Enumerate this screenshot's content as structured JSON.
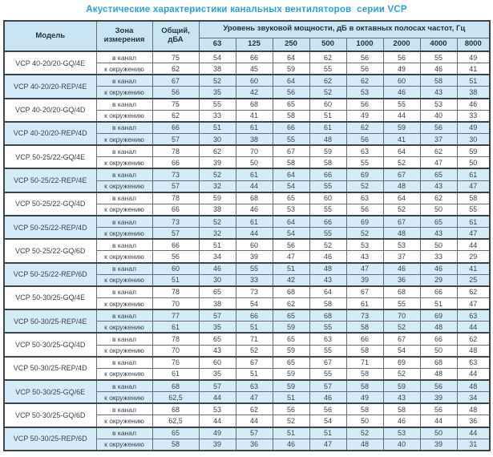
{
  "title": "Акустические характеристики канальных вентиляторов  серии VCP",
  "colors": {
    "title_text": "#2ba1dc",
    "header_bg": "#c9e5f4",
    "shaded_row_bg": "#d6ebf8",
    "header_text": "#25333f",
    "data_text": "#39424e",
    "border_dark": "#3f4448",
    "border_mid": "#666c72",
    "border_light": "#aebfca"
  },
  "table": {
    "headers": {
      "model": "Модель",
      "zone": "Зона измерения",
      "total": "Общий, дБА",
      "octave_group": "Уровень звуковой мощности, дБ в октавных полосах частот, Гц",
      "frequencies": [
        "63",
        "125",
        "250",
        "500",
        "1000",
        "2000",
        "4000",
        "8000"
      ]
    },
    "zone_labels": [
      "в канал",
      "к окружению"
    ],
    "rows": [
      {
        "model": "VCP 40-20/20-GQ/4E",
        "shaded": false,
        "duct": {
          "total": "75",
          "bands": [
            "54",
            "66",
            "64",
            "62",
            "56",
            "56",
            "55",
            "49"
          ]
        },
        "ambient": {
          "total": "62",
          "bands": [
            "38",
            "45",
            "59",
            "55",
            "56",
            "49",
            "46",
            "41"
          ]
        }
      },
      {
        "model": "VCP 40-20/20-REP/4E",
        "shaded": true,
        "duct": {
          "total": "67",
          "bands": [
            "52",
            "60",
            "64",
            "62",
            "62",
            "60",
            "58",
            "51"
          ]
        },
        "ambient": {
          "total": "56",
          "bands": [
            "35",
            "42",
            "56",
            "52",
            "53",
            "46",
            "43",
            "38"
          ]
        }
      },
      {
        "model": "VCP 40-20/20-GQ/4D",
        "shaded": false,
        "duct": {
          "total": "75",
          "bands": [
            "55",
            "68",
            "65",
            "60",
            "56",
            "55",
            "53",
            "46"
          ]
        },
        "ambient": {
          "total": "62",
          "bands": [
            "33",
            "41",
            "58",
            "51",
            "49",
            "44",
            "40",
            "33"
          ]
        }
      },
      {
        "model": "VCP 40-20/20-REP/4D",
        "shaded": true,
        "duct": {
          "total": "66",
          "bands": [
            "51",
            "61",
            "66",
            "61",
            "62",
            "59",
            "56",
            "49"
          ]
        },
        "ambient": {
          "total": "57",
          "bands": [
            "30",
            "38",
            "55",
            "48",
            "56",
            "41",
            "37",
            "30"
          ]
        }
      },
      {
        "model": "VCP 50-25/22-GQ/4E",
        "shaded": false,
        "duct": {
          "total": "78",
          "bands": [
            "62",
            "70",
            "67",
            "59",
            "63",
            "64",
            "62",
            "59"
          ]
        },
        "ambient": {
          "total": "66",
          "bands": [
            "39",
            "50",
            "58",
            "58",
            "55",
            "52",
            "47",
            "50"
          ]
        }
      },
      {
        "model": "VCP 50-25/22-REP/4E",
        "shaded": true,
        "duct": {
          "total": "73",
          "bands": [
            "52",
            "61",
            "64",
            "66",
            "69",
            "67",
            "65",
            "61"
          ]
        },
        "ambient": {
          "total": "57",
          "bands": [
            "32",
            "44",
            "54",
            "55",
            "52",
            "48",
            "43",
            "47"
          ]
        }
      },
      {
        "model": "VCP 50-25/22-GQ/4D",
        "shaded": false,
        "duct": {
          "total": "78",
          "bands": [
            "59",
            "68",
            "65",
            "60",
            "63",
            "64",
            "62",
            "58"
          ]
        },
        "ambient": {
          "total": "66",
          "bands": [
            "38",
            "46",
            "53",
            "55",
            "56",
            "52",
            "50",
            "55"
          ]
        }
      },
      {
        "model": "VCP 50-25/22-REP/4D",
        "shaded": true,
        "duct": {
          "total": "73",
          "bands": [
            "52",
            "61",
            "64",
            "66",
            "69",
            "67",
            "65",
            "61"
          ]
        },
        "ambient": {
          "total": "57",
          "bands": [
            "32",
            "44",
            "54",
            "55",
            "52",
            "48",
            "43",
            "47"
          ]
        }
      },
      {
        "model": "VCP 50-25/22-GQ/6D",
        "shaded": false,
        "duct": {
          "total": "66",
          "bands": [
            "51",
            "60",
            "56",
            "52",
            "53",
            "53",
            "50",
            "44"
          ]
        },
        "ambient": {
          "total": "56",
          "bands": [
            "34",
            "39",
            "47",
            "46",
            "43",
            "37",
            "33",
            "29"
          ]
        }
      },
      {
        "model": "VCP 50-25/22-REP/6D",
        "shaded": true,
        "duct": {
          "total": "60",
          "bands": [
            "46",
            "55",
            "51",
            "48",
            "47",
            "46",
            "46",
            "41"
          ]
        },
        "ambient": {
          "total": "51",
          "bands": [
            "30",
            "33",
            "42",
            "43",
            "39",
            "36",
            "29",
            "25"
          ]
        }
      },
      {
        "model": "VCP 50-30/25-GQ/4E",
        "shaded": false,
        "duct": {
          "total": "78",
          "bands": [
            "65",
            "73",
            "68",
            "64",
            "67",
            "68",
            "66",
            "62"
          ]
        },
        "ambient": {
          "total": "70",
          "bands": [
            "38",
            "54",
            "62",
            "58",
            "61",
            "55",
            "51",
            "47"
          ]
        }
      },
      {
        "model": "VCP 50-30/25-REP/4E",
        "shaded": true,
        "duct": {
          "total": "77",
          "bands": [
            "57",
            "66",
            "65",
            "68",
            "73",
            "70",
            "69",
            "63"
          ]
        },
        "ambient": {
          "total": "61",
          "bands": [
            "35",
            "51",
            "59",
            "55",
            "58",
            "52",
            "48",
            "44"
          ]
        }
      },
      {
        "model": "VCP 50-30/25-GQ/4D",
        "shaded": false,
        "duct": {
          "total": "78",
          "bands": [
            "65",
            "71",
            "65",
            "63",
            "66",
            "67",
            "66",
            "62"
          ]
        },
        "ambient": {
          "total": "70",
          "bands": [
            "43",
            "52",
            "59",
            "55",
            "58",
            "54",
            "50",
            "48"
          ]
        }
      },
      {
        "model": "VCP 50-30/25-REP/4D",
        "shaded": false,
        "duct": {
          "total": "76",
          "bands": [
            "60",
            "67",
            "65",
            "67",
            "71",
            "69",
            "68",
            "63"
          ]
        },
        "ambient": {
          "total": "61",
          "bands": [
            "35",
            "51",
            "59",
            "55",
            "58",
            "52",
            "48",
            "44"
          ]
        }
      },
      {
        "model": "VCP 50-30/25-GQ/6E",
        "shaded": true,
        "duct": {
          "total": "68",
          "bands": [
            "57",
            "63",
            "59",
            "57",
            "58",
            "59",
            "56",
            "48"
          ]
        },
        "ambient": {
          "total": "62,5",
          "bands": [
            "44",
            "47",
            "51",
            "46",
            "49",
            "43",
            "39",
            "34"
          ]
        }
      },
      {
        "model": "VCP 50-30/25-GQ/6D",
        "shaded": false,
        "duct": {
          "total": "68",
          "bands": [
            "53",
            "62",
            "56",
            "56",
            "58",
            "58",
            "56",
            "48"
          ]
        },
        "ambient": {
          "total": "62,5",
          "bands": [
            "44",
            "44",
            "52",
            "54",
            "50",
            "46",
            "44",
            "36"
          ]
        }
      },
      {
        "model": "VCP 50-30/25-REP/6D",
        "shaded": true,
        "duct": {
          "total": "65",
          "bands": [
            "49",
            "57",
            "51",
            "51",
            "52",
            "53",
            "50",
            "44"
          ]
        },
        "ambient": {
          "total": "58",
          "bands": [
            "39",
            "36",
            "46",
            "47",
            "48",
            "40",
            "39",
            "31"
          ]
        }
      }
    ]
  }
}
